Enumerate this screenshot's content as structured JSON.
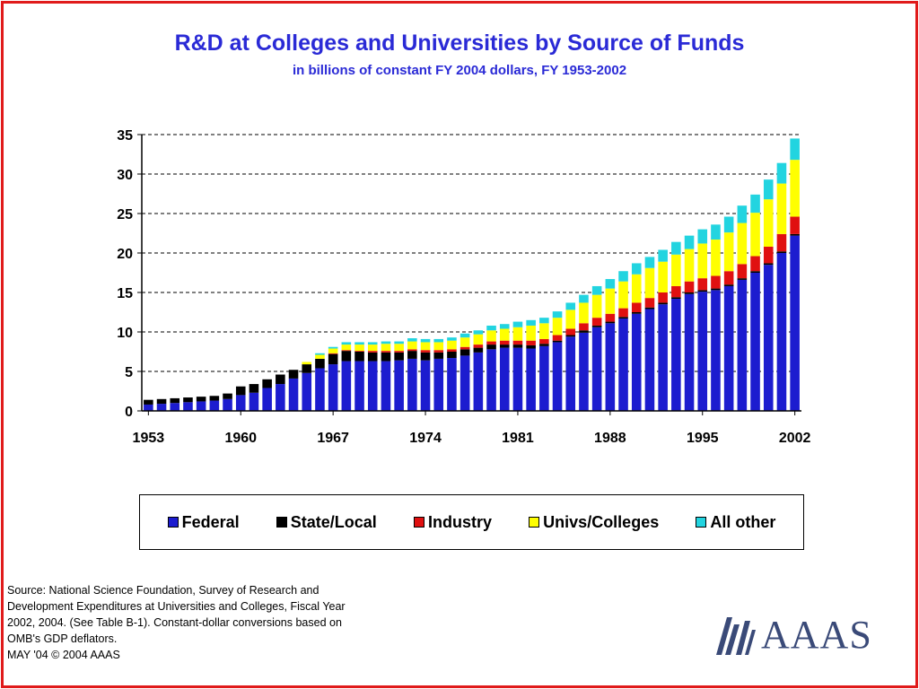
{
  "title": "R&D at Colleges and Universities by Source of Funds",
  "subtitle": "in billions of constant FY 2004 dollars, FY 1953-2002",
  "source_lines": [
    "Source: National Science Foundation, Survey of Research and",
    "Development Expenditures at Universities and Colleges, Fiscal Year",
    "2002, 2004. (See Table B-1). Constant-dollar conversions based on",
    "OMB's GDP deflators.",
    "MAY '04  © 2004 AAAS"
  ],
  "logo_text": "AAAS",
  "colors": {
    "frame": "#e01b1b",
    "title": "#2a2ad6",
    "federal": "#1c1ccf",
    "state_local": "#000000",
    "industry": "#e01010",
    "univs_colleges": "#ffff00",
    "all_other": "#22d4e0",
    "logo": "#3a4a78"
  },
  "chart_data": {
    "type": "bar",
    "stacked": true,
    "title": "R&D at Colleges and Universities by Source of Funds",
    "subtitle": "in billions of constant FY 2004 dollars, FY 1953-2002",
    "xlabel": "",
    "ylabel": "",
    "ylim": [
      0,
      35
    ],
    "yticks": [
      "0",
      "5",
      "10",
      "15",
      "20",
      "25",
      "30",
      "35"
    ],
    "xtick_labels": [
      "1953",
      "1960",
      "1967",
      "1974",
      "1981",
      "1988",
      "1995",
      "2002"
    ],
    "grid": "horizontal dashed",
    "legend_position": "bottom",
    "categories": [
      1953,
      1954,
      1955,
      1956,
      1957,
      1958,
      1959,
      1960,
      1961,
      1962,
      1963,
      1964,
      1965,
      1966,
      1967,
      1968,
      1969,
      1970,
      1971,
      1972,
      1973,
      1974,
      1975,
      1976,
      1977,
      1978,
      1979,
      1980,
      1981,
      1982,
      1983,
      1984,
      1985,
      1986,
      1987,
      1988,
      1989,
      1990,
      1991,
      1992,
      1993,
      1994,
      1995,
      1996,
      1997,
      1998,
      1999,
      2000,
      2001,
      2002
    ],
    "series": [
      {
        "name": "Federal",
        "color": "#1c1ccf",
        "values": [
          0.8,
          0.9,
          1.0,
          1.1,
          1.2,
          1.3,
          1.5,
          2.0,
          2.3,
          2.9,
          3.4,
          4.1,
          4.8,
          5.4,
          5.9,
          6.3,
          6.3,
          6.3,
          6.3,
          6.4,
          6.6,
          6.4,
          6.6,
          6.7,
          7.0,
          7.4,
          7.8,
          8.0,
          8.0,
          7.9,
          8.2,
          8.7,
          9.4,
          9.9,
          10.6,
          11.1,
          11.7,
          12.3,
          12.9,
          13.5,
          14.2,
          14.8,
          15.1,
          15.3,
          15.8,
          16.6,
          17.5,
          18.5,
          20.0,
          22.2
        ]
      },
      {
        "name": "State/Local",
        "color": "#000000",
        "values": [
          0.6,
          0.6,
          0.6,
          0.6,
          0.6,
          0.6,
          0.7,
          1.1,
          1.1,
          1.1,
          1.2,
          1.1,
          1.1,
          1.2,
          1.3,
          1.3,
          1.2,
          1.1,
          1.1,
          1.0,
          1.0,
          1.0,
          0.8,
          0.8,
          0.8,
          0.6,
          0.6,
          0.4,
          0.4,
          0.4,
          0.3,
          0.2,
          0.2,
          0.3,
          0.2,
          0.2,
          0.2,
          0.2,
          0.2,
          0.2,
          0.2,
          0.2,
          0.2,
          0.2,
          0.2,
          0.2,
          0.2,
          0.2,
          0.2,
          0.2
        ]
      },
      {
        "name": "Industry",
        "color": "#e01010",
        "values": [
          0,
          0,
          0,
          0,
          0,
          0,
          0,
          0,
          0,
          0,
          0,
          0,
          0,
          0,
          0.1,
          0.1,
          0.1,
          0.2,
          0.2,
          0.2,
          0.2,
          0.3,
          0.3,
          0.3,
          0.3,
          0.4,
          0.4,
          0.5,
          0.5,
          0.6,
          0.6,
          0.7,
          0.8,
          0.9,
          1.0,
          1.0,
          1.1,
          1.2,
          1.2,
          1.3,
          1.4,
          1.4,
          1.5,
          1.6,
          1.7,
          1.8,
          1.9,
          2.1,
          2.2,
          2.2
        ]
      },
      {
        "name": "Univs/Colleges",
        "color": "#ffff00",
        "values": [
          0,
          0,
          0,
          0,
          0,
          0,
          0,
          0,
          0,
          0,
          0,
          0,
          0.3,
          0.5,
          0.6,
          0.7,
          0.8,
          0.8,
          0.9,
          0.9,
          1.0,
          1.0,
          1.0,
          1.1,
          1.2,
          1.3,
          1.4,
          1.5,
          1.7,
          1.9,
          2.0,
          2.2,
          2.4,
          2.6,
          2.9,
          3.2,
          3.4,
          3.6,
          3.8,
          3.9,
          4.0,
          4.1,
          4.4,
          4.6,
          4.9,
          5.2,
          5.5,
          6.0,
          6.4,
          7.2
        ]
      },
      {
        "name": "All other",
        "color": "#22d4e0",
        "values": [
          0,
          0,
          0,
          0,
          0,
          0,
          0,
          0,
          0,
          0,
          0,
          0,
          0,
          0.2,
          0.2,
          0.3,
          0.3,
          0.3,
          0.3,
          0.3,
          0.4,
          0.4,
          0.4,
          0.4,
          0.5,
          0.5,
          0.6,
          0.6,
          0.7,
          0.7,
          0.7,
          0.8,
          0.9,
          1.0,
          1.1,
          1.2,
          1.3,
          1.4,
          1.4,
          1.5,
          1.6,
          1.7,
          1.8,
          1.9,
          2.0,
          2.2,
          2.3,
          2.5,
          2.6,
          2.7
        ]
      }
    ]
  }
}
